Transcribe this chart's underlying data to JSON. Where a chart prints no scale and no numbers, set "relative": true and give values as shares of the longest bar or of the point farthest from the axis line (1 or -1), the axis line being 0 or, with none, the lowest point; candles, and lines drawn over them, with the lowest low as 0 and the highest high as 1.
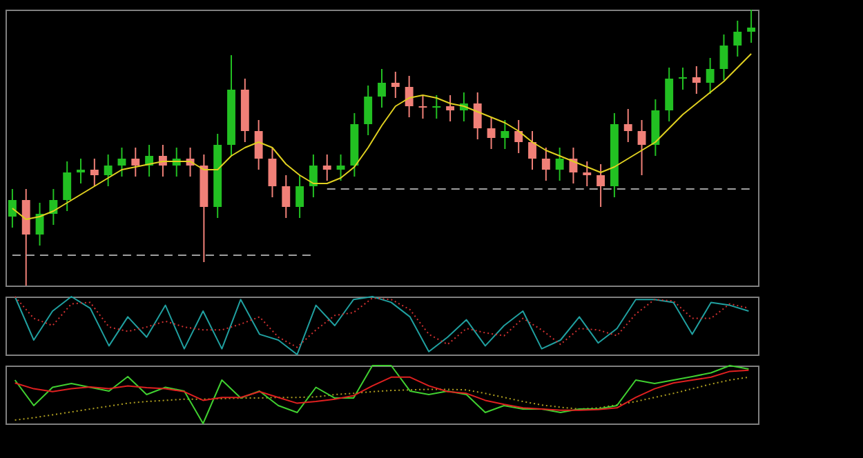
{
  "chart_data": [
    {
      "type": "candlestick",
      "relative": true,
      "tick_labels": false,
      "categories": [
        null,
        null,
        null,
        null,
        null,
        null,
        null,
        null,
        null,
        null,
        null,
        null,
        null,
        null,
        null,
        null,
        null,
        null,
        null,
        null,
        null,
        null,
        null,
        null,
        null,
        null,
        null,
        null,
        null,
        null,
        null,
        null,
        null,
        null,
        null,
        null,
        null,
        null,
        null,
        null,
        null,
        null,
        null,
        null,
        null,
        null,
        null,
        null,
        null,
        null,
        null,
        null,
        null,
        null,
        null
      ],
      "ohlc": [
        [
          0.25,
          0.35,
          0.21,
          0.31
        ],
        [
          0.31,
          0.35,
          0,
          0.185
        ],
        [
          0.185,
          0.3,
          0.145,
          0.26
        ],
        [
          0.26,
          0.35,
          0.22,
          0.31
        ],
        [
          0.31,
          0.45,
          0.27,
          0.41
        ],
        [
          0.41,
          0.46,
          0.37,
          0.42
        ],
        [
          0.42,
          0.46,
          0.36,
          0.4
        ],
        [
          0.4,
          0.475,
          0.36,
          0.435
        ],
        [
          0.435,
          0.5,
          0.395,
          0.46
        ],
        [
          0.46,
          0.5,
          0.395,
          0.435
        ],
        [
          0.435,
          0.51,
          0.395,
          0.47
        ],
        [
          0.47,
          0.51,
          0.395,
          0.435
        ],
        [
          0.435,
          0.5,
          0.395,
          0.46
        ],
        [
          0.46,
          0.5,
          0.395,
          0.435
        ],
        [
          0.435,
          0.475,
          0.085,
          0.285
        ],
        [
          0.285,
          0.55,
          0.245,
          0.51
        ],
        [
          0.51,
          0.835,
          0.47,
          0.71
        ],
        [
          0.71,
          0.75,
          0.52,
          0.56
        ],
        [
          0.56,
          0.6,
          0.42,
          0.46
        ],
        [
          0.46,
          0.5,
          0.32,
          0.36
        ],
        [
          0.36,
          0.4,
          0.245,
          0.285
        ],
        [
          0.285,
          0.4,
          0.245,
          0.36
        ],
        [
          0.36,
          0.475,
          0.32,
          0.435
        ],
        [
          0.435,
          0.475,
          0.38,
          0.42
        ],
        [
          0.42,
          0.475,
          0.38,
          0.435
        ],
        [
          0.435,
          0.625,
          0.395,
          0.585
        ],
        [
          0.585,
          0.725,
          0.545,
          0.685
        ],
        [
          0.685,
          0.785,
          0.645,
          0.735
        ],
        [
          0.735,
          0.775,
          0.68,
          0.72
        ],
        [
          0.72,
          0.76,
          0.61,
          0.65
        ],
        [
          0.65,
          0.69,
          0.605,
          0.645
        ],
        [
          0.645,
          0.69,
          0.605,
          0.65
        ],
        [
          0.65,
          0.69,
          0.595,
          0.635
        ],
        [
          0.635,
          0.7,
          0.595,
          0.66
        ],
        [
          0.66,
          0.7,
          0.53,
          0.57
        ],
        [
          0.57,
          0.61,
          0.495,
          0.535
        ],
        [
          0.535,
          0.6,
          0.495,
          0.56
        ],
        [
          0.56,
          0.6,
          0.48,
          0.52
        ],
        [
          0.52,
          0.56,
          0.42,
          0.46
        ],
        [
          0.46,
          0.5,
          0.38,
          0.42
        ],
        [
          0.42,
          0.5,
          0.38,
          0.46
        ],
        [
          0.46,
          0.5,
          0.37,
          0.41
        ],
        [
          0.41,
          0.45,
          0.36,
          0.4
        ],
        [
          0.4,
          0.44,
          0.285,
          0.36
        ],
        [
          0.36,
          0.625,
          0.32,
          0.585
        ],
        [
          0.585,
          0.64,
          0.52,
          0.56
        ],
        [
          0.56,
          0.6,
          0.4,
          0.51
        ],
        [
          0.51,
          0.675,
          0.47,
          0.635
        ],
        [
          0.635,
          0.79,
          0.595,
          0.75
        ],
        [
          0.75,
          0.79,
          0.71,
          0.755
        ],
        [
          0.755,
          0.795,
          0.695,
          0.735
        ],
        [
          0.735,
          0.825,
          0.695,
          0.785
        ],
        [
          0.785,
          0.91,
          0.745,
          0.87
        ],
        [
          0.87,
          0.96,
          0.83,
          0.92
        ],
        [
          0.92,
          1,
          0.88,
          0.935
        ]
      ],
      "colors": [
        "#22c022",
        "#f08078",
        "#22c022",
        "#22c022",
        "#22c022",
        "#22c022",
        "#f08078",
        "#22c022",
        "#22c022",
        "#f08078",
        "#22c022",
        "#f08078",
        "#22c022",
        "#f08078",
        "#f08078",
        "#22c022",
        "#22c022",
        "#f08078",
        "#f08078",
        "#f08078",
        "#f08078",
        "#22c022",
        "#22c022",
        "#f08078",
        "#22c022",
        "#22c022",
        "#22c022",
        "#22c022",
        "#f08078",
        "#f08078",
        "#f08078",
        "#22c022",
        "#f08078",
        "#22c022",
        "#f08078",
        "#f08078",
        "#22c022",
        "#f08078",
        "#f08078",
        "#f08078",
        "#22c022",
        "#f08078",
        "#f08078",
        "#f08078",
        "#22c022",
        "#f08078",
        "#f08078",
        "#22c022",
        "#22c022",
        "#22c022",
        "#f08078",
        "#22c022",
        "#22c022",
        "#22c022",
        "#22c022"
      ],
      "series": [
        {
          "type": "line",
          "color": "#e0d020",
          "values": [
            0.28,
            0.24,
            0.25,
            0.27,
            0.3,
            0.33,
            0.36,
            0.39,
            0.42,
            0.43,
            0.44,
            0.45,
            0.45,
            0.45,
            0.42,
            0.42,
            0.47,
            0.5,
            0.52,
            0.5,
            0.44,
            0.4,
            0.37,
            0.37,
            0.39,
            0.43,
            0.5,
            0.58,
            0.65,
            0.68,
            0.69,
            0.68,
            0.66,
            0.65,
            0.63,
            0.61,
            0.59,
            0.56,
            0.52,
            0.49,
            0.47,
            0.45,
            0.43,
            0.41,
            0.43,
            0.46,
            0.49,
            0.52,
            0.57,
            0.62,
            0.66,
            0.7,
            0.74,
            0.79,
            0.84
          ]
        },
        {
          "type": "line",
          "color": "#a0a0a0",
          "line_style": "dashed",
          "values": [
            0.11,
            0.11,
            0.11,
            0.11,
            0.11,
            0.11,
            0.11,
            0.11,
            0.11,
            0.11,
            0.11,
            0.11,
            0.11,
            0.11,
            0.11,
            0.11,
            0.11,
            0.11,
            0.11,
            0.11,
            0.11,
            0.11,
            0.11,
            null,
            null,
            null,
            null,
            null,
            null,
            null,
            null,
            null,
            null,
            null,
            null,
            null,
            null,
            null,
            null,
            null,
            null,
            null,
            null,
            null,
            null,
            null,
            null,
            null,
            null,
            null,
            null,
            null,
            null,
            null,
            null
          ]
        },
        {
          "type": "line",
          "color": "#a0a0a0",
          "line_style": "dashed",
          "values": [
            null,
            null,
            null,
            null,
            null,
            null,
            null,
            null,
            null,
            null,
            null,
            null,
            null,
            null,
            null,
            null,
            null,
            null,
            null,
            null,
            null,
            null,
            null,
            0.35,
            0.35,
            0.35,
            0.35,
            0.35,
            0.35,
            0.35,
            0.35,
            0.35,
            0.35,
            0.35,
            0.35,
            0.35,
            0.35,
            0.35,
            0.35,
            0.35,
            0.35,
            0.35,
            0.35,
            0.35,
            0.35,
            0.35,
            0.35,
            0.35,
            0.35,
            0.35,
            0.35,
            0.35,
            0.35,
            0.35,
            0.35
          ]
        }
      ]
    },
    {
      "type": "line",
      "relative": true,
      "tick_labels": false,
      "categories": [
        null,
        null,
        null,
        null,
        null,
        null,
        null,
        null,
        null,
        null,
        null,
        null,
        null,
        null,
        null,
        null,
        null,
        null,
        null,
        null,
        null,
        null,
        null,
        null,
        null,
        null,
        null,
        null,
        null,
        null,
        null,
        null,
        null,
        null,
        null,
        null,
        null,
        null,
        null,
        null
      ],
      "series": [
        {
          "color": "#20a0a0",
          "values": [
            1.0,
            0.25,
            0.75,
            1.0,
            0.8,
            0.15,
            0.65,
            0.3,
            0.85,
            0.1,
            0.75,
            0.1,
            0.95,
            0.35,
            0.25,
            0,
            0.85,
            0.5,
            0.95,
            1.0,
            0.9,
            0.65,
            0.05,
            0.3,
            0.6,
            0.15,
            0.5,
            0.75,
            0.1,
            0.25,
            0.65,
            0.2,
            0.45,
            0.95,
            0.95,
            0.9,
            0.35,
            0.9,
            0.85,
            0.75
          ]
        },
        {
          "color": "#d03030",
          "line_style": "dotted",
          "values": [
            1.0,
            0.625,
            0.5,
            0.875,
            0.9,
            0.475,
            0.4,
            0.475,
            0.575,
            0.475,
            0.425,
            0.425,
            0.525,
            0.65,
            0.3,
            0.125,
            0.425,
            0.675,
            0.725,
            0.975,
            0.95,
            0.775,
            0.35,
            0.175,
            0.45,
            0.375,
            0.325,
            0.625,
            0.425,
            0.175,
            0.45,
            0.425,
            0.325,
            0.7,
            0.95,
            0.925,
            0.625,
            0.625,
            0.875,
            0.8
          ]
        }
      ]
    },
    {
      "type": "line",
      "relative": true,
      "tick_labels": false,
      "categories": [
        null,
        null,
        null,
        null,
        null,
        null,
        null,
        null,
        null,
        null,
        null,
        null,
        null,
        null,
        null,
        null,
        null,
        null,
        null,
        null,
        null,
        null,
        null,
        null,
        null,
        null,
        null,
        null,
        null,
        null,
        null,
        null,
        null,
        null,
        null,
        null,
        null,
        null,
        null,
        null
      ],
      "series": [
        {
          "color": "#b0a020",
          "line_style": "dotted",
          "values": [
            0.06,
            0.1,
            0.15,
            0.2,
            0.25,
            0.3,
            0.35,
            0.38,
            0.4,
            0.42,
            0.42,
            0.43,
            0.44,
            0.44,
            0.45,
            0.45,
            0.46,
            0.5,
            0.52,
            0.55,
            0.57,
            0.58,
            0.59,
            0.59,
            0.58,
            0.52,
            0.45,
            0.38,
            0.32,
            0.28,
            0.25,
            0.27,
            0.32,
            0.38,
            0.45,
            0.52,
            0.6,
            0.68,
            0.75,
            0.8
          ]
        },
        {
          "color": "#40d030",
          "values": [
            0.75,
            0.31,
            0.625,
            0.69,
            0.625,
            0.56,
            0.81,
            0.5,
            0.625,
            0.56,
            0,
            0.75,
            0.44,
            0.56,
            0.31,
            0.19,
            0.625,
            0.44,
            0.44,
            1,
            1,
            0.56,
            0.5,
            0.56,
            0.5,
            0.19,
            0.31,
            0.25,
            0.25,
            0.19,
            0.25,
            0.25,
            0.31,
            0.75,
            0.69,
            0.75,
            0.81,
            0.875,
            1,
            0.94
          ]
        },
        {
          "color": "#e02020",
          "values": [
            0.7,
            0.6,
            0.55,
            0.6,
            0.63,
            0.6,
            0.65,
            0.62,
            0.6,
            0.55,
            0.4,
            0.45,
            0.45,
            0.55,
            0.45,
            0.35,
            0.38,
            0.42,
            0.48,
            0.65,
            0.8,
            0.8,
            0.65,
            0.55,
            0.52,
            0.4,
            0.33,
            0.27,
            0.25,
            0.23,
            0.23,
            0.24,
            0.27,
            0.45,
            0.6,
            0.7,
            0.75,
            0.8,
            0.9,
            0.92
          ]
        }
      ]
    }
  ]
}
